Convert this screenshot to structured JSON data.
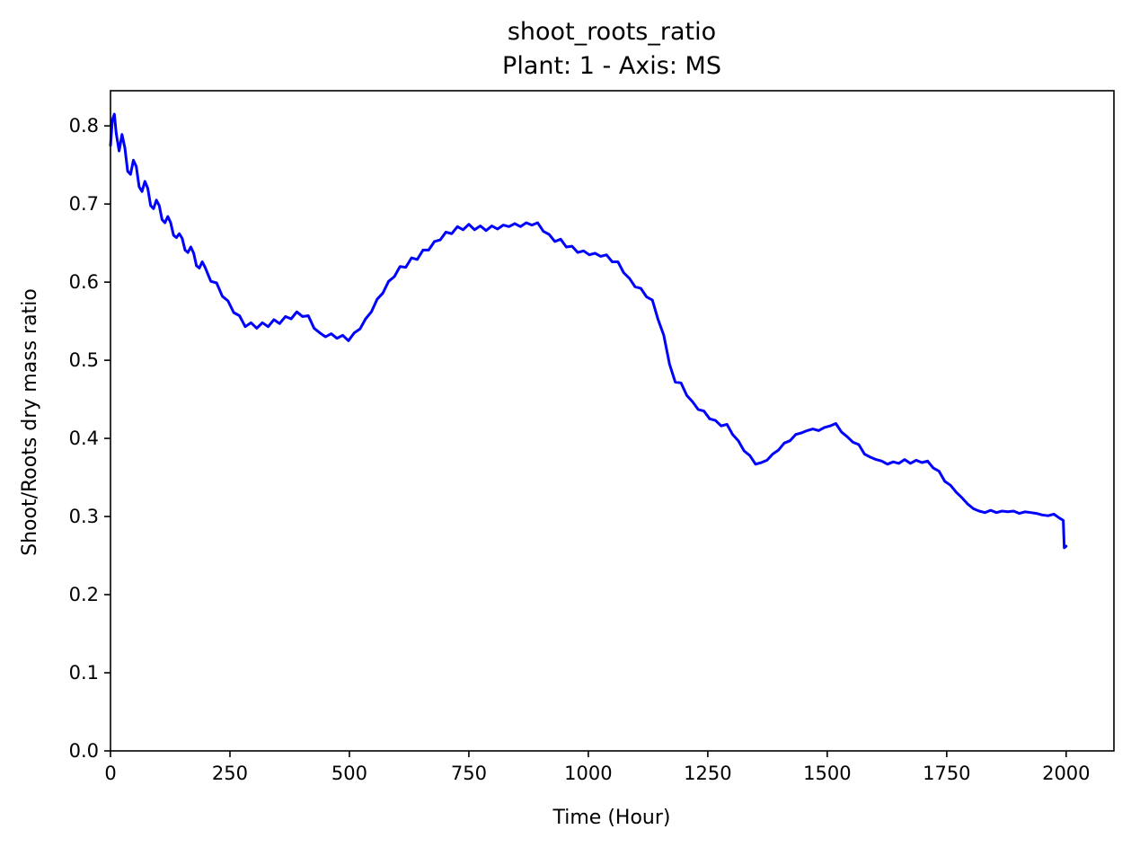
{
  "chart_data": {
    "type": "line",
    "title": "shoot_roots_ratio",
    "subtitle": "Plant: 1 - Axis: MS",
    "xlabel": "Time (Hour)",
    "ylabel": "Shoot/Roots dry mass ratio",
    "xlim": [
      0,
      2100
    ],
    "ylim": [
      0,
      0.845
    ],
    "xticks": [
      0,
      250,
      500,
      750,
      1000,
      1250,
      1500,
      1750,
      2000
    ],
    "xtick_labels": [
      "0",
      "250",
      "500",
      "750",
      "1000",
      "1250",
      "1500",
      "1750",
      "2000"
    ],
    "yticks": [
      0.0,
      0.1,
      0.2,
      0.3,
      0.4,
      0.5,
      0.6,
      0.7,
      0.8
    ],
    "ytick_labels": [
      "0.0",
      "0.1",
      "0.2",
      "0.3",
      "0.4",
      "0.5",
      "0.6",
      "0.7",
      "0.8"
    ],
    "grid": false,
    "series": [
      {
        "color": "#0000ff",
        "x": [
          0,
          4,
          8,
          12,
          18,
          24,
          30,
          36,
          42,
          48,
          54,
          60,
          66,
          72,
          78,
          84,
          90,
          96,
          102,
          108,
          114,
          120,
          126,
          132,
          138,
          144,
          150,
          156,
          162,
          168,
          174,
          180,
          186,
          192,
          198,
          210,
          222,
          234,
          246,
          258,
          270,
          282,
          294,
          306,
          318,
          330,
          342,
          354,
          366,
          378,
          390,
          402,
          414,
          426,
          438,
          450,
          462,
          474,
          486,
          498,
          510,
          522,
          534,
          546,
          558,
          570,
          582,
          594,
          606,
          618,
          630,
          642,
          654,
          666,
          678,
          690,
          702,
          714,
          726,
          738,
          750,
          762,
          774,
          786,
          798,
          810,
          822,
          834,
          846,
          858,
          870,
          882,
          894,
          906,
          918,
          930,
          942,
          954,
          966,
          978,
          990,
          1002,
          1014,
          1026,
          1038,
          1050,
          1062,
          1074,
          1086,
          1098,
          1110,
          1122,
          1134,
          1146,
          1158,
          1170,
          1182,
          1194,
          1206,
          1218,
          1230,
          1242,
          1254,
          1266,
          1278,
          1290,
          1302,
          1314,
          1326,
          1338,
          1350,
          1362,
          1374,
          1386,
          1398,
          1410,
          1422,
          1434,
          1446,
          1458,
          1470,
          1482,
          1494,
          1506,
          1518,
          1530,
          1542,
          1554,
          1566,
          1578,
          1590,
          1602,
          1614,
          1626,
          1638,
          1650,
          1662,
          1674,
          1686,
          1698,
          1710,
          1722,
          1734,
          1746,
          1758,
          1770,
          1782,
          1794,
          1806,
          1818,
          1830,
          1842,
          1854,
          1866,
          1878,
          1890,
          1902,
          1914,
          1926,
          1938,
          1950,
          1962,
          1974,
          1986,
          1994,
          1996,
          2000
        ],
        "y": [
          0.775,
          0.808,
          0.815,
          0.79,
          0.768,
          0.789,
          0.772,
          0.742,
          0.738,
          0.756,
          0.748,
          0.722,
          0.716,
          0.729,
          0.72,
          0.698,
          0.694,
          0.705,
          0.698,
          0.68,
          0.676,
          0.684,
          0.676,
          0.66,
          0.657,
          0.662,
          0.656,
          0.641,
          0.638,
          0.645,
          0.637,
          0.621,
          0.618,
          0.626,
          0.619,
          0.601,
          0.599,
          0.582,
          0.576,
          0.561,
          0.557,
          0.543,
          0.548,
          0.541,
          0.548,
          0.543,
          0.552,
          0.547,
          0.556,
          0.553,
          0.562,
          0.556,
          0.557,
          0.541,
          0.535,
          0.53,
          0.534,
          0.528,
          0.532,
          0.525,
          0.535,
          0.54,
          0.553,
          0.562,
          0.578,
          0.586,
          0.601,
          0.607,
          0.62,
          0.619,
          0.631,
          0.629,
          0.641,
          0.641,
          0.652,
          0.654,
          0.664,
          0.662,
          0.671,
          0.667,
          0.674,
          0.667,
          0.672,
          0.666,
          0.672,
          0.668,
          0.673,
          0.671,
          0.675,
          0.671,
          0.676,
          0.673,
          0.676,
          0.665,
          0.661,
          0.652,
          0.655,
          0.645,
          0.646,
          0.638,
          0.64,
          0.635,
          0.637,
          0.633,
          0.635,
          0.626,
          0.626,
          0.612,
          0.605,
          0.594,
          0.592,
          0.581,
          0.577,
          0.552,
          0.532,
          0.495,
          0.472,
          0.471,
          0.455,
          0.447,
          0.437,
          0.435,
          0.425,
          0.423,
          0.416,
          0.418,
          0.405,
          0.397,
          0.384,
          0.378,
          0.367,
          0.369,
          0.372,
          0.38,
          0.385,
          0.394,
          0.397,
          0.405,
          0.407,
          0.41,
          0.412,
          0.41,
          0.414,
          0.416,
          0.419,
          0.408,
          0.402,
          0.395,
          0.392,
          0.38,
          0.376,
          0.373,
          0.371,
          0.367,
          0.37,
          0.368,
          0.373,
          0.368,
          0.372,
          0.369,
          0.371,
          0.362,
          0.358,
          0.345,
          0.34,
          0.331,
          0.324,
          0.316,
          0.31,
          0.307,
          0.305,
          0.308,
          0.305,
          0.307,
          0.306,
          0.307,
          0.304,
          0.306,
          0.305,
          0.304,
          0.302,
          0.301,
          0.303,
          0.298,
          0.295,
          0.26,
          0.262
        ]
      }
    ]
  }
}
